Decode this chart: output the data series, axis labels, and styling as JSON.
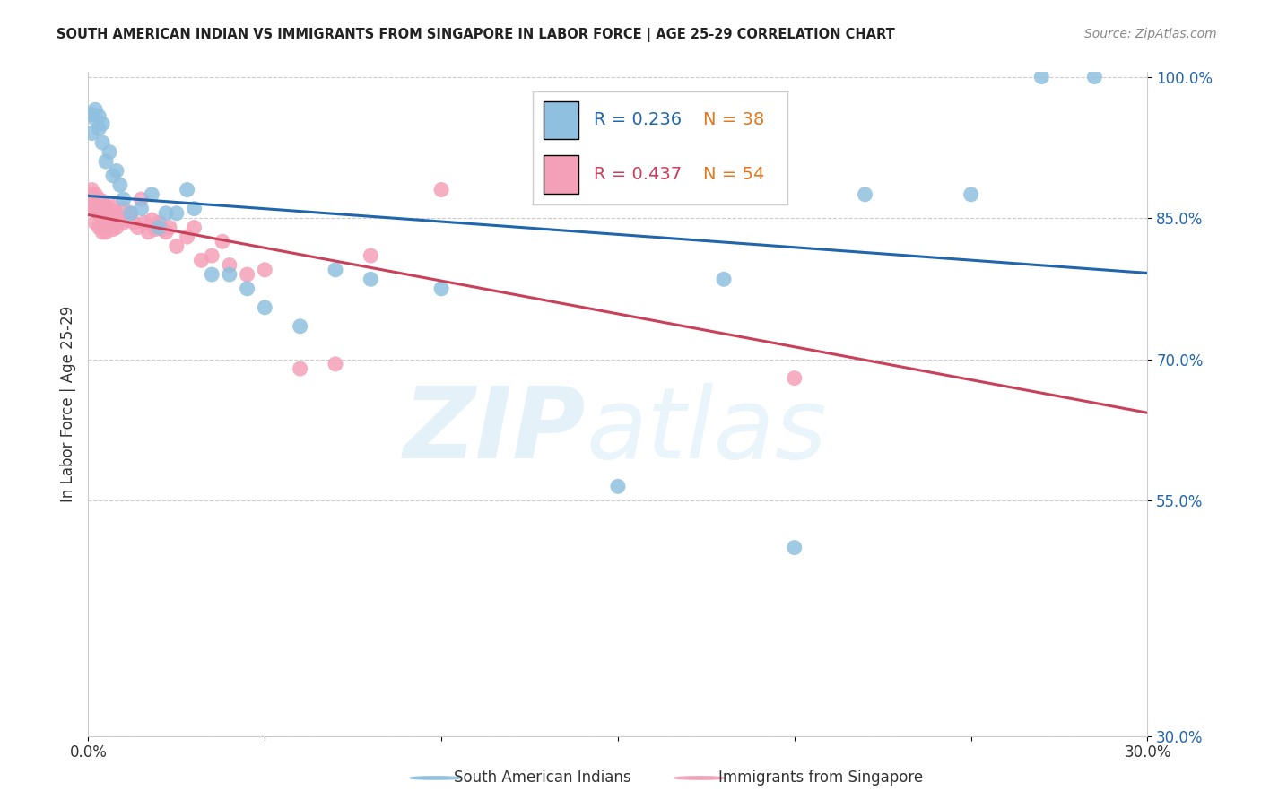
{
  "title": "SOUTH AMERICAN INDIAN VS IMMIGRANTS FROM SINGAPORE IN LABOR FORCE | AGE 25-29 CORRELATION CHART",
  "source": "Source: ZipAtlas.com",
  "ylabel": "In Labor Force | Age 25-29",
  "watermark_zip": "ZIP",
  "watermark_atlas": "atlas",
  "xlim": [
    0.0,
    0.3
  ],
  "ylim": [
    0.3,
    1.005
  ],
  "yticks": [
    0.3,
    0.55,
    0.7,
    0.85,
    1.0
  ],
  "ytick_labels": [
    "30.0%",
    "55.0%",
    "70.0%",
    "85.0%",
    "100.0%"
  ],
  "xticks": [
    0.0,
    0.05,
    0.1,
    0.15,
    0.2,
    0.25,
    0.3
  ],
  "xtick_labels": [
    "0.0%",
    "",
    "",
    "",
    "",
    "",
    "30.0%"
  ],
  "blue_color": "#90c0e0",
  "pink_color": "#f4a0b8",
  "blue_line_color": "#2166ac",
  "pink_line_color": "#c9405a",
  "blue_R": "0.236",
  "blue_N": "38",
  "pink_R": "0.437",
  "pink_N": "54",
  "legend_label_blue": "South American Indians",
  "legend_label_pink": "Immigrants from Singapore",
  "blue_scatter_x": [
    0.001,
    0.001,
    0.002,
    0.002,
    0.003,
    0.003,
    0.004,
    0.004,
    0.005,
    0.006,
    0.007,
    0.008,
    0.009,
    0.01,
    0.012,
    0.015,
    0.018,
    0.02,
    0.022,
    0.025,
    0.028,
    0.03,
    0.035,
    0.04,
    0.045,
    0.05,
    0.06,
    0.07,
    0.08,
    0.1,
    0.13,
    0.15,
    0.18,
    0.2,
    0.22,
    0.25,
    0.27,
    0.285
  ],
  "blue_scatter_y": [
    0.96,
    0.94,
    0.955,
    0.965,
    0.958,
    0.945,
    0.95,
    0.93,
    0.91,
    0.92,
    0.895,
    0.9,
    0.885,
    0.87,
    0.855,
    0.86,
    0.875,
    0.84,
    0.855,
    0.855,
    0.88,
    0.86,
    0.79,
    0.79,
    0.775,
    0.755,
    0.735,
    0.795,
    0.785,
    0.775,
    0.875,
    0.565,
    0.785,
    0.5,
    0.875,
    0.875,
    1.0,
    1.0
  ],
  "pink_scatter_x": [
    0.001,
    0.001,
    0.001,
    0.001,
    0.002,
    0.002,
    0.002,
    0.003,
    0.003,
    0.003,
    0.004,
    0.004,
    0.004,
    0.005,
    0.005,
    0.005,
    0.006,
    0.006,
    0.007,
    0.007,
    0.007,
    0.008,
    0.008,
    0.009,
    0.01,
    0.01,
    0.011,
    0.012,
    0.013,
    0.014,
    0.015,
    0.016,
    0.017,
    0.018,
    0.019,
    0.02,
    0.021,
    0.022,
    0.023,
    0.025,
    0.028,
    0.03,
    0.032,
    0.035,
    0.038,
    0.04,
    0.045,
    0.05,
    0.06,
    0.07,
    0.08,
    0.1,
    0.13,
    0.2
  ],
  "pink_scatter_y": [
    0.875,
    0.88,
    0.87,
    0.86,
    0.875,
    0.86,
    0.845,
    0.87,
    0.855,
    0.84,
    0.868,
    0.85,
    0.835,
    0.862,
    0.848,
    0.835,
    0.86,
    0.845,
    0.862,
    0.848,
    0.838,
    0.855,
    0.84,
    0.85,
    0.86,
    0.845,
    0.848,
    0.855,
    0.845,
    0.84,
    0.87,
    0.845,
    0.835,
    0.848,
    0.838,
    0.845,
    0.838,
    0.835,
    0.84,
    0.82,
    0.83,
    0.84,
    0.805,
    0.81,
    0.825,
    0.8,
    0.79,
    0.795,
    0.69,
    0.695,
    0.81,
    0.88,
    0.88,
    0.68
  ]
}
